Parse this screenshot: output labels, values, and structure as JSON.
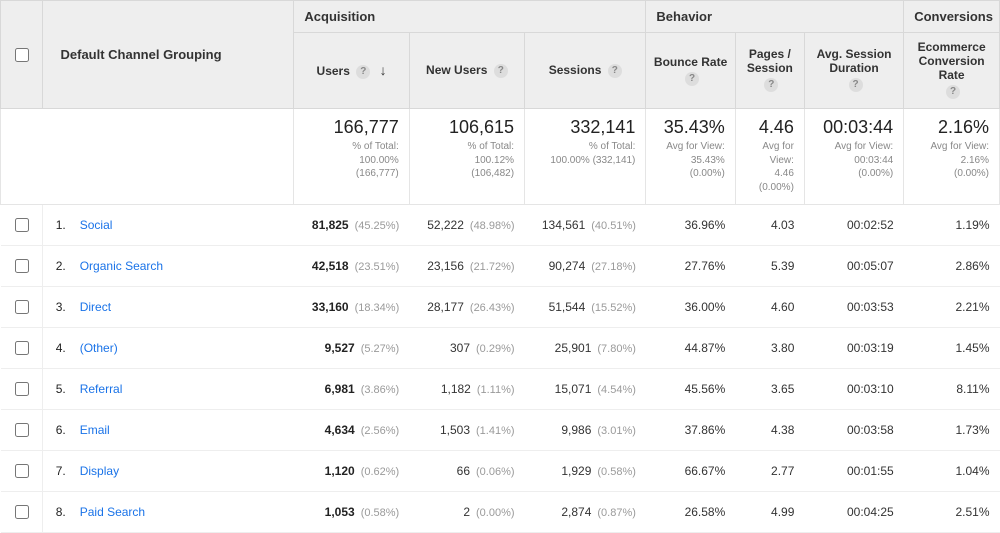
{
  "header": {
    "dimension_label": "Default Channel Grouping",
    "groups": {
      "acquisition": "Acquisition",
      "behavior": "Behavior",
      "conversions": "Conversions"
    },
    "metrics": [
      {
        "key": "users",
        "label": "Users",
        "group": "acquisition",
        "sorted": true
      },
      {
        "key": "new_users",
        "label": "New Users",
        "group": "acquisition"
      },
      {
        "key": "sessions",
        "label": "Sessions",
        "group": "acquisition"
      },
      {
        "key": "bounce_rate",
        "label": "Bounce Rate",
        "group": "behavior"
      },
      {
        "key": "pages_session",
        "label": "Pages / Session",
        "group": "behavior"
      },
      {
        "key": "avg_duration",
        "label": "Avg. Session Duration",
        "group": "behavior"
      },
      {
        "key": "ecr",
        "label": "Ecommerce Conversion Rate",
        "group": "conversions"
      }
    ]
  },
  "totals": {
    "users": {
      "big": "166,777",
      "sub1": "% of Total:",
      "sub2": "100.00%",
      "sub3": "(166,777)"
    },
    "new_users": {
      "big": "106,615",
      "sub1": "% of Total:",
      "sub2": "100.12%",
      "sub3": "(106,482)"
    },
    "sessions": {
      "big": "332,141",
      "sub1": "% of Total:",
      "sub2": "100.00% (332,141)"
    },
    "bounce_rate": {
      "big": "35.43%",
      "sub1": "Avg for View:",
      "sub2": "35.43%",
      "sub3": "(0.00%)"
    },
    "pages_session": {
      "big": "4.46",
      "sub1": "Avg for View:",
      "sub2": "4.46",
      "sub3": "(0.00%)"
    },
    "avg_duration": {
      "big": "00:03:44",
      "sub1": "Avg for View:",
      "sub2": "00:03:44",
      "sub3": "(0.00%)"
    },
    "ecr": {
      "big": "2.16%",
      "sub1": "Avg for View:",
      "sub2": "2.16%",
      "sub3": "(0.00%)"
    }
  },
  "rows": [
    {
      "idx": "1.",
      "channel": "Social",
      "users": "81,825",
      "users_pct": "(45.25%)",
      "new_users": "52,222",
      "new_users_pct": "(48.98%)",
      "sessions": "134,561",
      "sessions_pct": "(40.51%)",
      "bounce": "36.96%",
      "pps": "4.03",
      "dur": "00:02:52",
      "ecr": "1.19%"
    },
    {
      "idx": "2.",
      "channel": "Organic Search",
      "users": "42,518",
      "users_pct": "(23.51%)",
      "new_users": "23,156",
      "new_users_pct": "(21.72%)",
      "sessions": "90,274",
      "sessions_pct": "(27.18%)",
      "bounce": "27.76%",
      "pps": "5.39",
      "dur": "00:05:07",
      "ecr": "2.86%"
    },
    {
      "idx": "3.",
      "channel": "Direct",
      "users": "33,160",
      "users_pct": "(18.34%)",
      "new_users": "28,177",
      "new_users_pct": "(26.43%)",
      "sessions": "51,544",
      "sessions_pct": "(15.52%)",
      "bounce": "36.00%",
      "pps": "4.60",
      "dur": "00:03:53",
      "ecr": "2.21%"
    },
    {
      "idx": "4.",
      "channel": "(Other)",
      "users": "9,527",
      "users_pct": "(5.27%)",
      "new_users": "307",
      "new_users_pct": "(0.29%)",
      "sessions": "25,901",
      "sessions_pct": "(7.80%)",
      "bounce": "44.87%",
      "pps": "3.80",
      "dur": "00:03:19",
      "ecr": "1.45%"
    },
    {
      "idx": "5.",
      "channel": "Referral",
      "users": "6,981",
      "users_pct": "(3.86%)",
      "new_users": "1,182",
      "new_users_pct": "(1.11%)",
      "sessions": "15,071",
      "sessions_pct": "(4.54%)",
      "bounce": "45.56%",
      "pps": "3.65",
      "dur": "00:03:10",
      "ecr": "8.11%"
    },
    {
      "idx": "6.",
      "channel": "Email",
      "users": "4,634",
      "users_pct": "(2.56%)",
      "new_users": "1,503",
      "new_users_pct": "(1.41%)",
      "sessions": "9,986",
      "sessions_pct": "(3.01%)",
      "bounce": "37.86%",
      "pps": "4.38",
      "dur": "00:03:58",
      "ecr": "1.73%"
    },
    {
      "idx": "7.",
      "channel": "Display",
      "users": "1,120",
      "users_pct": "(0.62%)",
      "new_users": "66",
      "new_users_pct": "(0.06%)",
      "sessions": "1,929",
      "sessions_pct": "(0.58%)",
      "bounce": "66.67%",
      "pps": "2.77",
      "dur": "00:01:55",
      "ecr": "1.04%"
    },
    {
      "idx": "8.",
      "channel": "Paid Search",
      "users": "1,053",
      "users_pct": "(0.58%)",
      "new_users": "2",
      "new_users_pct": "(0.00%)",
      "sessions": "2,874",
      "sessions_pct": "(0.87%)",
      "bounce": "26.58%",
      "pps": "4.99",
      "dur": "00:04:25",
      "ecr": "2.51%"
    }
  ],
  "colors": {
    "link": "#1a73e8",
    "header_bg": "#eeeeee",
    "border": "#d8d8d8",
    "muted": "#9a9a9a"
  }
}
